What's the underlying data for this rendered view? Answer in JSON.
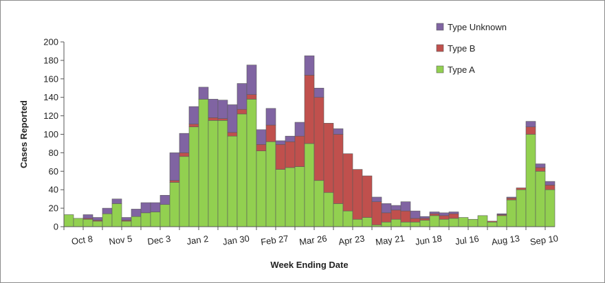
{
  "chart_data": {
    "type": "bar",
    "stacked": true,
    "xlabel": "Week Ending Date",
    "ylabel": "Cases Reported",
    "ylim": [
      0,
      200
    ],
    "yticks": [
      0,
      20,
      40,
      60,
      80,
      100,
      120,
      140,
      160,
      180,
      200
    ],
    "grid": false,
    "legend_position": "top-right",
    "x_tick_labels": [
      {
        "label": "Oct 8",
        "index": 1
      },
      {
        "label": "Nov 5",
        "index": 5
      },
      {
        "label": "Dec 3",
        "index": 9
      },
      {
        "label": "Jan 2",
        "index": 13
      },
      {
        "label": "Jan 30",
        "index": 17
      },
      {
        "label": "Feb 27",
        "index": 21
      },
      {
        "label": "Mar 26",
        "index": 25
      },
      {
        "label": "Apr 23",
        "index": 29
      },
      {
        "label": "May 21",
        "index": 33
      },
      {
        "label": "Jun 18",
        "index": 37
      },
      {
        "label": "Jul 16",
        "index": 41
      },
      {
        "label": "Aug 13",
        "index": 45
      },
      {
        "label": "Sep 10",
        "index": 49
      }
    ],
    "series": [
      {
        "name": "Type A",
        "color": "#92D050",
        "values": [
          13,
          9,
          8,
          6,
          14,
          25,
          6,
          11,
          15,
          16,
          24,
          48,
          76,
          108,
          138,
          115,
          115,
          98,
          122,
          138,
          82,
          92,
          62,
          64,
          65,
          90,
          50,
          37,
          25,
          17,
          8,
          10,
          2,
          5,
          8,
          5,
          5,
          7,
          12,
          8,
          9,
          10,
          8,
          12,
          5,
          12,
          29,
          40,
          100,
          60,
          40
        ]
      },
      {
        "name": "Type B",
        "color": "#C0504D",
        "values": [
          0,
          0,
          1,
          1,
          0,
          0,
          1,
          0,
          0,
          0,
          0,
          2,
          4,
          3,
          0,
          3,
          2,
          4,
          5,
          5,
          7,
          18,
          27,
          28,
          33,
          74,
          90,
          75,
          75,
          62,
          54,
          45,
          25,
          10,
          10,
          12,
          4,
          2,
          2,
          4,
          5,
          0,
          0,
          0,
          1,
          1,
          2,
          2,
          8,
          4,
          5
        ]
      },
      {
        "name": "Type Unknown",
        "color": "#8064A2",
        "values": [
          0,
          0,
          4,
          3,
          6,
          5,
          3,
          8,
          11,
          10,
          10,
          30,
          21,
          19,
          13,
          20,
          20,
          30,
          28,
          32,
          16,
          18,
          4,
          6,
          15,
          21,
          10,
          0,
          6,
          0,
          0,
          0,
          5,
          10,
          5,
          10,
          8,
          2,
          2,
          3,
          2,
          0,
          0,
          0,
          0,
          1,
          1,
          0,
          6,
          4,
          4
        ]
      }
    ]
  }
}
